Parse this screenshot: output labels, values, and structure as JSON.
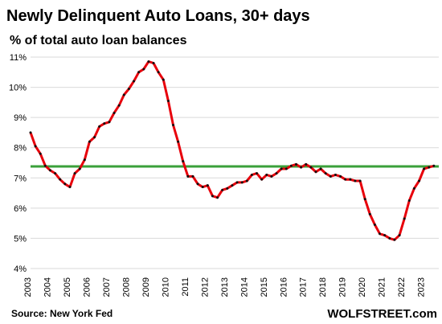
{
  "chart_data": {
    "type": "line",
    "title": "Newly Delinquent Auto Loans, 30+ days",
    "subtitle": "% of total auto loan balances",
    "source": "Source: New York Fed",
    "brand": "WOLFSTREET.com",
    "xlim": [
      2003,
      2023.75
    ],
    "ylim": [
      4,
      11
    ],
    "y_ticks": [
      4,
      5,
      6,
      7,
      8,
      9,
      10,
      11
    ],
    "y_tick_labels": [
      "4%",
      "5%",
      "6%",
      "7%",
      "8%",
      "9%",
      "10%",
      "11%"
    ],
    "x_tick_labels": [
      "2003",
      "2004",
      "2005",
      "2006",
      "2007",
      "2008",
      "2009",
      "2010",
      "2011",
      "2012",
      "2013",
      "2014",
      "2015",
      "2016",
      "2017",
      "2018",
      "2019",
      "2020",
      "2021",
      "2022",
      "2023"
    ],
    "grid": "horizontal",
    "colors": {
      "series": "#e8000b",
      "marker": "#111111",
      "reference": "#3aa03a",
      "grid": "#d9d9d9",
      "text": "#000000"
    },
    "reference_line": 7.38,
    "series": [
      {
        "x": [
          2003,
          2003.25,
          2003.5,
          2003.75,
          2004,
          2004.25,
          2004.5,
          2004.75,
          2005,
          2005.25,
          2005.5,
          2005.75,
          2006,
          2006.25,
          2006.5,
          2006.75,
          2007,
          2007.25,
          2007.5,
          2007.75,
          2008,
          2008.25,
          2008.5,
          2008.75,
          2009,
          2009.25,
          2009.5,
          2009.75,
          2010,
          2010.25,
          2010.5,
          2010.75,
          2011,
          2011.25,
          2011.5,
          2011.75,
          2012,
          2012.25,
          2012.5,
          2012.75,
          2013,
          2013.25,
          2013.5,
          2013.75,
          2014,
          2014.25,
          2014.5,
          2014.75,
          2015,
          2015.25,
          2015.5,
          2015.75,
          2016,
          2016.25,
          2016.5,
          2016.75,
          2017,
          2017.25,
          2017.5,
          2017.75,
          2018,
          2018.25,
          2018.5,
          2018.75,
          2019,
          2019.25,
          2019.5,
          2019.75,
          2020,
          2020.25,
          2020.5,
          2020.75,
          2021,
          2021.25,
          2021.5,
          2021.75,
          2022,
          2022.25,
          2022.5,
          2022.75,
          2023,
          2023.25,
          2023.5
        ],
        "y": [
          8.5,
          8.05,
          7.8,
          7.4,
          7.25,
          7.15,
          6.95,
          6.8,
          6.7,
          7.15,
          7.3,
          7.6,
          8.2,
          8.35,
          8.7,
          8.8,
          8.85,
          9.15,
          9.4,
          9.75,
          9.95,
          10.2,
          10.5,
          10.6,
          10.85,
          10.8,
          10.5,
          10.25,
          9.55,
          8.75,
          8.2,
          7.55,
          7.05,
          7.05,
          6.8,
          6.7,
          6.75,
          6.4,
          6.35,
          6.6,
          6.65,
          6.75,
          6.85,
          6.85,
          6.9,
          7.1,
          7.15,
          6.95,
          7.1,
          7.05,
          7.15,
          7.3,
          7.3,
          7.4,
          7.45,
          7.35,
          7.45,
          7.35,
          7.2,
          7.3,
          7.15,
          7.05,
          7.1,
          7.05,
          6.95,
          6.95,
          6.9,
          6.9,
          6.3,
          5.8,
          5.45,
          5.15,
          5.1,
          5.0,
          4.95,
          5.1,
          5.65,
          6.25,
          6.65,
          6.9,
          7.3,
          7.35,
          7.4
        ]
      }
    ]
  }
}
